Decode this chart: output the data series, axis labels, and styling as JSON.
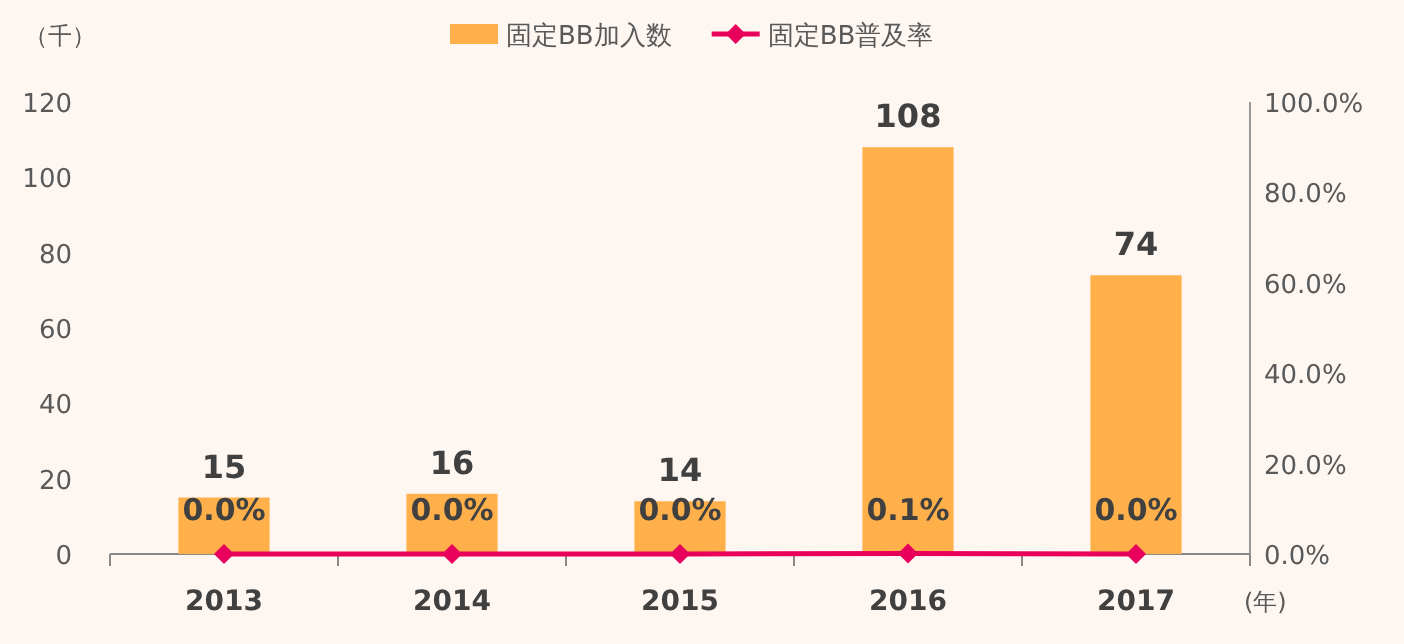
{
  "chart_data": {
    "type": "bar",
    "categories": [
      "2013",
      "2014",
      "2015",
      "2016",
      "2017"
    ],
    "series": [
      {
        "name": "固定BB加入数",
        "color": "#ffb04a",
        "values": [
          15,
          16,
          14,
          108,
          74
        ]
      },
      {
        "name": "固定BB普及率",
        "type": "line",
        "axis": "y2",
        "color": "#e8005a",
        "marker": "diamond",
        "values": [
          0.0,
          0.0,
          0.0,
          0.1,
          0.0
        ],
        "value_labels": [
          "0.0%",
          "0.0%",
          "0.0%",
          "0.1%",
          "0.0%"
        ]
      }
    ],
    "data_labels": true,
    "legend": "top",
    "ylabel": "（千）",
    "xlabel": "(年)",
    "ylim": [
      0,
      120
    ],
    "yticks": [
      0,
      20,
      40,
      60,
      80,
      100,
      120
    ],
    "y2lim": [
      0,
      100
    ],
    "y2ticks": [
      {
        "value": 0,
        "label": "0.0%"
      },
      {
        "value": 20,
        "label": "20.0%"
      },
      {
        "value": 40,
        "label": "40.0%"
      },
      {
        "value": 60,
        "label": "60.0%"
      },
      {
        "value": 80,
        "label": "80.0%"
      },
      {
        "value": 100,
        "label": "100.0%"
      }
    ]
  }
}
